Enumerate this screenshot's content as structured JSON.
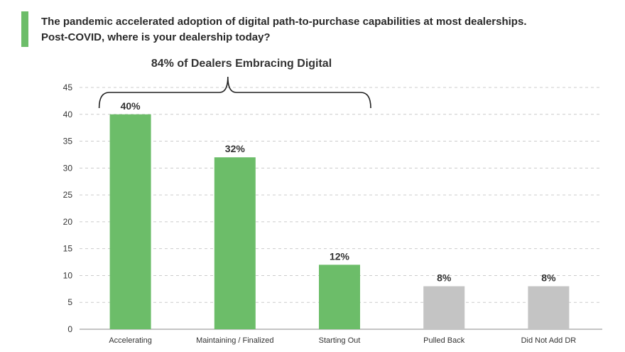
{
  "question": {
    "line1": "The pandemic accelerated adoption of digital path-to-purchase capabilities at most dealerships.",
    "line2": "Post-COVID, where is your dealership today?"
  },
  "annotation": {
    "label": "84% of Dealers Embracing Digital"
  },
  "colors": {
    "accent": "#6cbd69",
    "green_bar": "#6cbd69",
    "gray_bar": "#c4c4c4",
    "grid": "#cccccc",
    "text": "#2a2a2a"
  },
  "chart_data": {
    "type": "bar",
    "categories": [
      "Accelerating",
      "Maintaining / Finalized",
      "Starting Out",
      "Pulled Back",
      "Did Not Add DR"
    ],
    "values": [
      40,
      32,
      12,
      8,
      8
    ],
    "data_labels": [
      "40%",
      "32%",
      "12%",
      "8%",
      "8%"
    ],
    "bar_colors": [
      "green",
      "green",
      "green",
      "gray",
      "gray"
    ],
    "ylim": [
      0,
      45
    ],
    "yticks": [
      0,
      5,
      10,
      15,
      20,
      25,
      30,
      35,
      40,
      45
    ],
    "grid": true,
    "bracket_categories": [
      "Accelerating",
      "Maintaining / Finalized",
      "Starting Out"
    ]
  }
}
